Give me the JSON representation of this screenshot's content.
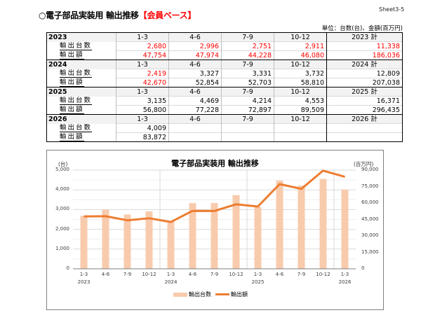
{
  "sheet_label": "Sheet3-5",
  "title": {
    "prefix": "○電子部品実装用 輸出推移",
    "accent": "【会員ベース】"
  },
  "unit_label": "単位：台数(台)、金額(百万円)",
  "colors": {
    "bar": "#f8cbad",
    "line": "#ed7d31",
    "highlight_text": "#ff0000",
    "header_bg": "#f2f2f2"
  },
  "table": {
    "row_labels": {
      "units": "輸出台数",
      "value": "輸出額"
    },
    "years": [
      {
        "year": "2023",
        "headers": [
          "1-3",
          "4-6",
          "7-9",
          "10-12",
          "2023 計"
        ],
        "units": [
          "2,680",
          "2,996",
          "2,751",
          "2,911",
          "11,338"
        ],
        "value": [
          "47,754",
          "47,974",
          "44,228",
          "46,080",
          "186,036"
        ],
        "units_red": [
          true,
          true,
          true,
          true,
          true
        ],
        "value_red": [
          true,
          true,
          true,
          true,
          true
        ]
      },
      {
        "year": "2024",
        "headers": [
          "1-3",
          "4-6",
          "7-9",
          "10-12",
          "2024 計"
        ],
        "units": [
          "2,419",
          "3,327",
          "3,331",
          "3,732",
          "12,809"
        ],
        "value": [
          "42,670",
          "52,854",
          "52,703",
          "58,810",
          "207,038"
        ],
        "units_red": [
          true,
          false,
          false,
          false,
          false
        ],
        "value_red": [
          true,
          false,
          false,
          false,
          false
        ]
      },
      {
        "year": "2025",
        "headers": [
          "1-3",
          "4-6",
          "7-9",
          "10-12",
          "2025 計"
        ],
        "units": [
          "3,135",
          "4,469",
          "4,214",
          "4,553",
          "16,371"
        ],
        "value": [
          "56,800",
          "77,228",
          "72,897",
          "89,509",
          "296,435"
        ],
        "units_red": [
          false,
          false,
          false,
          false,
          false
        ],
        "value_red": [
          false,
          false,
          false,
          false,
          false
        ]
      },
      {
        "year": "2026",
        "headers": [
          "1-3",
          "4-6",
          "7-9",
          "10-12",
          "2026 計"
        ],
        "units": [
          "4,009",
          "",
          "",
          "",
          ""
        ],
        "value": [
          "83,872",
          "",
          "",
          "",
          ""
        ],
        "units_red": [
          false,
          false,
          false,
          false,
          false
        ],
        "value_red": [
          false,
          false,
          false,
          false,
          false
        ]
      }
    ]
  },
  "chart_data": {
    "type": "bar",
    "title": "電子部品実装用 輸出推移",
    "categories": [
      "1-3",
      "4-6",
      "7-9",
      "10-12",
      "1-3",
      "4-6",
      "7-9",
      "10-12",
      "1-3",
      "4-6",
      "7-9",
      "10-12",
      "1-3"
    ],
    "category_years": [
      "2023",
      "",
      "",
      "",
      "2024",
      "",
      "",
      "",
      "2025",
      "",
      "",
      "",
      "2026"
    ],
    "series": [
      {
        "name": "輸出台数",
        "type": "bar",
        "axis": "left",
        "values": [
          2680,
          2996,
          2751,
          2911,
          2419,
          3327,
          3331,
          3732,
          3135,
          4469,
          4214,
          4553,
          4009
        ]
      },
      {
        "name": "輸出額",
        "type": "line",
        "axis": "right",
        "values": [
          47754,
          47974,
          44228,
          46080,
          42670,
          52854,
          52703,
          58810,
          56800,
          77228,
          72897,
          89509,
          83872
        ]
      }
    ],
    "y_left": {
      "unit": "(台)",
      "ylim": [
        0,
        5000
      ],
      "ticks": [
        "0",
        "1,000",
        "2,000",
        "3,000",
        "4,000",
        "5,000"
      ]
    },
    "y_right": {
      "unit": "(百万円)",
      "ylim": [
        0,
        90000
      ],
      "ticks": [
        "0",
        "15,000",
        "30,000",
        "45,000",
        "60,000",
        "75,000",
        "90,000"
      ]
    },
    "grid": true,
    "legend_position": "bottom"
  }
}
